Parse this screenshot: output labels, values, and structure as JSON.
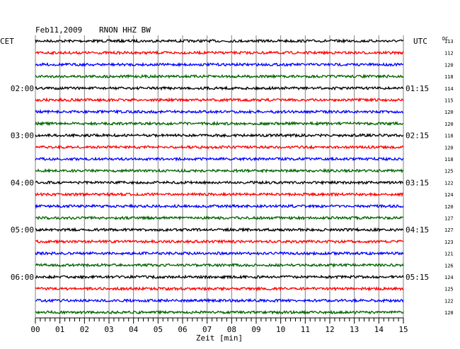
{
  "header": {
    "date": "Feb11,2009",
    "station": "RNON HHZ BW",
    "left_zone": "CET",
    "right_zone": "UTC",
    "dc_label": "DC"
  },
  "chart_data": {
    "type": "line",
    "xlabel": "Zeit [min]",
    "xlim": [
      0,
      15
    ],
    "x_ticks": [
      "00",
      "01",
      "02",
      "03",
      "04",
      "05",
      "06",
      "07",
      "08",
      "09",
      "10",
      "11",
      "12",
      "13",
      "14",
      "15"
    ],
    "trace_colors": [
      "#000000",
      "#ff0000",
      "#0000ff",
      "#006400"
    ],
    "left_time_labels": [
      {
        "row": 4,
        "label": "02:00"
      },
      {
        "row": 8,
        "label": "03:00"
      },
      {
        "row": 12,
        "label": "04:00"
      },
      {
        "row": 16,
        "label": "05:00"
      },
      {
        "row": 20,
        "label": "06:00"
      }
    ],
    "right_time_labels": [
      {
        "row": 4,
        "label": "01:15"
      },
      {
        "row": 8,
        "label": "02:15"
      },
      {
        "row": 12,
        "label": "03:15"
      },
      {
        "row": 16,
        "label": "04:15"
      },
      {
        "row": 20,
        "label": "05:15"
      }
    ],
    "dc_offsets": [
      "113",
      "112",
      "120",
      "118",
      "114",
      "115",
      "120",
      "120",
      "118",
      "120",
      "118",
      "125",
      "122",
      "124",
      "120",
      "127",
      "127",
      "123",
      "121",
      "126",
      "124",
      "125",
      "122",
      "128"
    ]
  }
}
